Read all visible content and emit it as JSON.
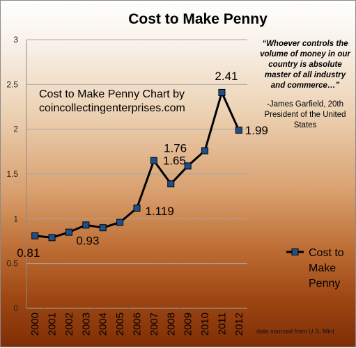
{
  "chart_data": {
    "type": "line",
    "title": "Cost to Make Penny",
    "x": [
      "2000",
      "2001",
      "2002",
      "2003",
      "2004",
      "2005",
      "2006",
      "2007",
      "2008",
      "2009",
      "2010",
      "2011",
      "2012"
    ],
    "series": [
      {
        "name": "Cost to Make Penny",
        "values": [
          0.81,
          0.79,
          0.85,
          0.93,
          0.9,
          0.96,
          1.119,
          1.65,
          1.39,
          1.59,
          1.76,
          2.41,
          1.99
        ]
      }
    ],
    "ylim": [
      0,
      3
    ],
    "yticks": [
      0,
      0.5,
      1,
      1.5,
      2,
      2.5,
      3
    ],
    "grid": true,
    "legend": "right",
    "data_labels": [
      {
        "index": 0,
        "text": "0.81"
      },
      {
        "index": 3,
        "text": "0.93"
      },
      {
        "index": 6,
        "text": "1.119"
      },
      {
        "index": 7,
        "text": "1.65"
      },
      {
        "index": 10,
        "text": "1.76"
      },
      {
        "index": 11,
        "text": "2.41"
      },
      {
        "index": 12,
        "text": "1.99"
      }
    ],
    "annotation_lines": [
      "Cost to Make Penny Chart by",
      "coincollectingenterprises.com"
    ],
    "legend_lines": [
      "Cost to",
      "Make",
      "Penny"
    ]
  },
  "quote": {
    "text_lines": [
      "“Whoever controls the",
      "volume of money in our",
      "country is absolute",
      "master of all industry",
      "and commerce…”"
    ],
    "attribution_lines": [
      "-James Garfield, 20th",
      "President of the United",
      "States"
    ]
  },
  "footer": "data sourced from U.S. Mint",
  "colors": {
    "line": "#000000",
    "marker": "#1f4e8c",
    "grid": "#a8a8a8"
  }
}
